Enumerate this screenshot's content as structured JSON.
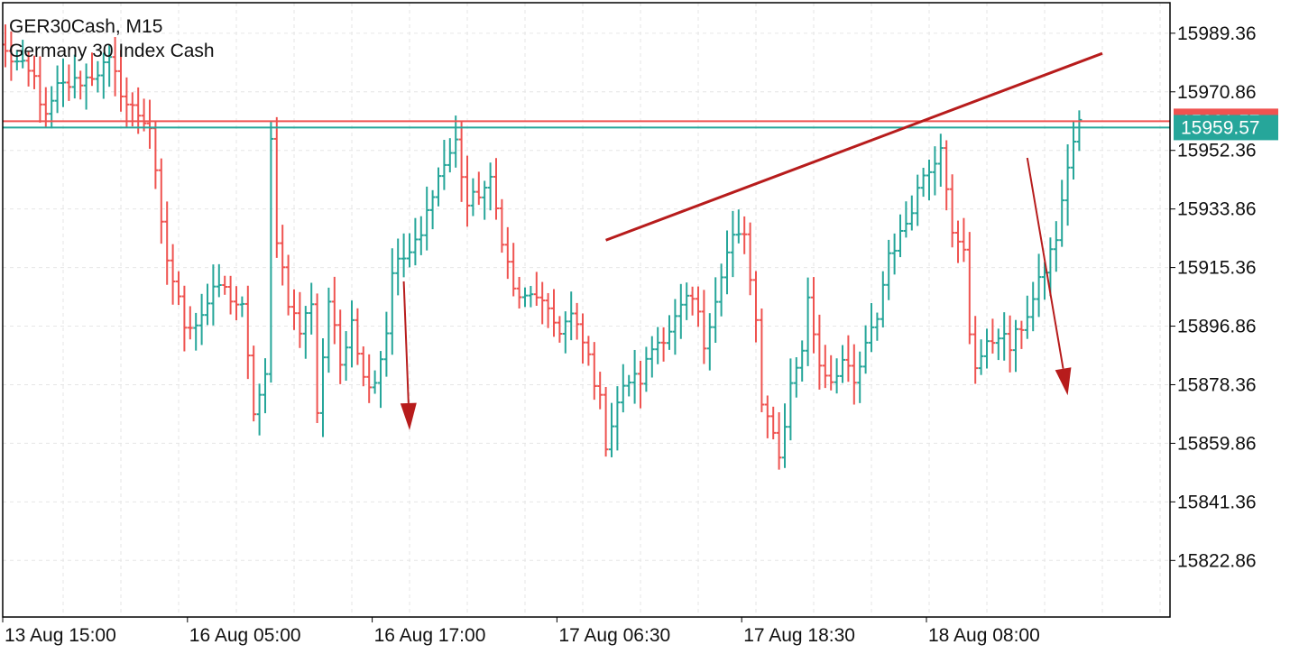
{
  "chart_title": {
    "symbol_timeframe": "GER30Cash, M15",
    "description": "Germany 30 Index Cash"
  },
  "price_labels": {
    "bid": "15961.57",
    "ask": "15959.57"
  },
  "colors": {
    "bull": "#26a69a",
    "bear": "#ef5350",
    "bid_line": "#ef5350",
    "ask_line": "#26a69a",
    "drawing": "#b71c1c",
    "grid": "#e6e6e6",
    "frame": "#000000"
  },
  "chart_data": {
    "type": "ohlc",
    "symbol": "GER30Cash",
    "timeframe": "M15",
    "y_ticks": [
      15822.86,
      15841.36,
      15859.86,
      15878.36,
      15896.86,
      15915.36,
      15933.86,
      15952.36,
      15970.86,
      15989.36
    ],
    "y_range": [
      15805.0,
      15999.0
    ],
    "x_tick_labels": [
      "13 Aug 15:00",
      "16 Aug 05:00",
      "16 Aug 17:00",
      "17 Aug 06:30",
      "17 Aug 18:30",
      "18 Aug 08:00"
    ],
    "x_tick_bar_index": [
      0,
      32,
      64,
      96,
      128,
      160
    ],
    "bar_count": 188,
    "bid": 15961.57,
    "ask": 15959.57,
    "anchors": [
      [
        0,
        15983
      ],
      [
        5,
        15975
      ],
      [
        7,
        15962
      ],
      [
        9,
        15972
      ],
      [
        14,
        15975
      ],
      [
        18,
        15980
      ],
      [
        21,
        15967
      ],
      [
        23,
        15964
      ],
      [
        25,
        15960
      ],
      [
        27,
        15928
      ],
      [
        28,
        15918
      ],
      [
        31,
        15898
      ],
      [
        33,
        15898
      ],
      [
        37,
        15910
      ],
      [
        41,
        15902
      ],
      [
        43,
        15870
      ],
      [
        45,
        15880
      ],
      [
        46,
        15955
      ],
      [
        47,
        15925
      ],
      [
        49,
        15905
      ],
      [
        51,
        15895
      ],
      [
        53,
        15905
      ],
      [
        54,
        15870
      ],
      [
        56,
        15905
      ],
      [
        58,
        15885
      ],
      [
        60,
        15900
      ],
      [
        62,
        15880
      ],
      [
        64,
        15880
      ],
      [
        66,
        15895
      ],
      [
        67,
        15915
      ],
      [
        70,
        15920
      ],
      [
        72,
        15925
      ],
      [
        74,
        15940
      ],
      [
        76,
        15948
      ],
      [
        78,
        15955
      ],
      [
        80,
        15935
      ],
      [
        82,
        15939
      ],
      [
        84,
        15942
      ],
      [
        86,
        15925
      ],
      [
        88,
        15908
      ],
      [
        90,
        15905
      ],
      [
        92,
        15907
      ],
      [
        94,
        15900
      ],
      [
        96,
        15896
      ],
      [
        98,
        15900
      ],
      [
        101,
        15887
      ],
      [
        103,
        15873
      ],
      [
        104,
        15860
      ],
      [
        106,
        15873
      ],
      [
        108,
        15880
      ],
      [
        110,
        15880
      ],
      [
        112,
        15890
      ],
      [
        115,
        15896
      ],
      [
        118,
        15905
      ],
      [
        120,
        15901
      ],
      [
        121,
        15888
      ],
      [
        123,
        15907
      ],
      [
        125,
        15920
      ],
      [
        126,
        15925
      ],
      [
        128,
        15925
      ],
      [
        130,
        15898
      ],
      [
        131,
        15870
      ],
      [
        133,
        15865
      ],
      [
        134,
        15855
      ],
      [
        136,
        15878
      ],
      [
        138,
        15890
      ],
      [
        139,
        15905
      ],
      [
        141,
        15885
      ],
      [
        143,
        15880
      ],
      [
        145,
        15886
      ],
      [
        147,
        15878
      ],
      [
        149,
        15890
      ],
      [
        151,
        15900
      ],
      [
        153,
        15920
      ],
      [
        155,
        15925
      ],
      [
        157,
        15935
      ],
      [
        159,
        15945
      ],
      [
        161,
        15950
      ],
      [
        162,
        15955
      ],
      [
        163,
        15942
      ],
      [
        164,
        15925
      ],
      [
        166,
        15920
      ],
      [
        167,
        15895
      ],
      [
        168,
        15885
      ],
      [
        170,
        15890
      ],
      [
        172,
        15895
      ],
      [
        174,
        15890
      ],
      [
        176,
        15897
      ],
      [
        178,
        15905
      ],
      [
        180,
        15915
      ],
      [
        182,
        15925
      ],
      [
        183,
        15935
      ],
      [
        184,
        15948
      ],
      [
        185,
        15955
      ],
      [
        186,
        15962
      ]
    ],
    "drawings": {
      "trendline": {
        "from": {
          "bar": 104,
          "price": 15924
        },
        "to": {
          "bar": 190,
          "price": 15983
        }
      },
      "arrows": [
        {
          "from": {
            "bar": 69,
            "price": 15911
          },
          "to": {
            "bar": 70,
            "price": 15864
          }
        },
        {
          "from": {
            "bar": 177,
            "price": 15950
          },
          "to": {
            "bar": 184,
            "price": 15875
          }
        }
      ]
    }
  }
}
